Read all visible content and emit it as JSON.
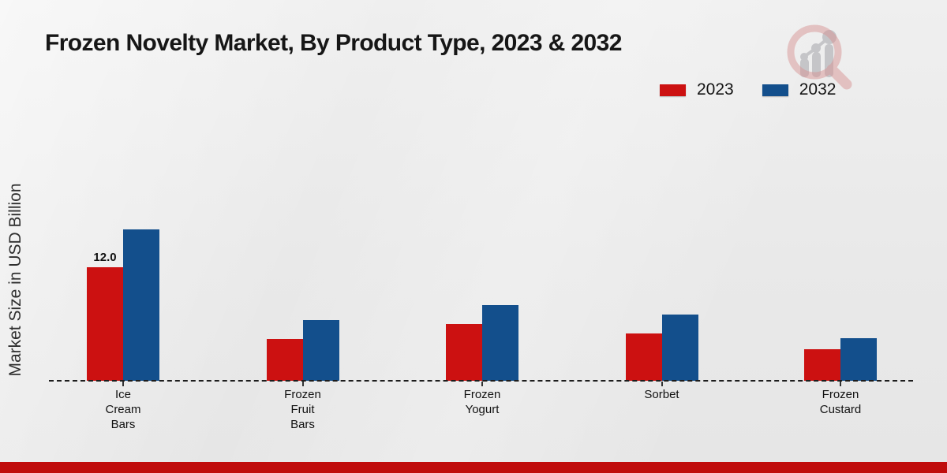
{
  "title": "Frozen Novelty Market, By Product Type, 2023 & 2032",
  "y_axis_label": "Market Size in USD Billion",
  "legend": {
    "items": [
      {
        "label": "2023",
        "color": "#cc1111"
      },
      {
        "label": "2032",
        "color": "#134f8c"
      }
    ]
  },
  "colors": {
    "series_2023": "#cc1111",
    "series_2032": "#134f8c",
    "footer_bar": "#c00c0c",
    "axis": "#1d1d1d",
    "logo_ring": "#d89595",
    "logo_bars": "#c3c3c7"
  },
  "chart_data": {
    "type": "bar",
    "title": "Frozen Novelty Market, By Product Type, 2023 & 2032",
    "xlabel": "",
    "ylabel": "Market Size in USD Billion",
    "unit": "USD Billion",
    "categories": [
      "Ice Cream Bars",
      "Frozen Fruit Bars",
      "Frozen Yogurt",
      "Sorbet",
      "Frozen Custard"
    ],
    "categories_display": [
      [
        "Ice",
        "Cream",
        "Bars"
      ],
      [
        "Frozen",
        "Fruit",
        "Bars"
      ],
      [
        "Frozen",
        "Yogurt"
      ],
      [
        "Sorbet"
      ],
      [
        "Frozen",
        "Custard"
      ]
    ],
    "series": [
      {
        "name": "2023",
        "color": "#cc1111",
        "values": [
          12.0,
          4.4,
          6.0,
          5.0,
          3.3
        ]
      },
      {
        "name": "2032",
        "color": "#134f8c",
        "values": [
          16.0,
          6.4,
          8.0,
          7.0,
          4.5
        ]
      }
    ],
    "data_labels": [
      {
        "series": "2023",
        "category": "Ice Cream Bars",
        "text": "12.0"
      }
    ],
    "ylim": [
      0,
      18
    ],
    "grid": false,
    "y_axis_ticks_visible": false,
    "legend_position": "top-right"
  }
}
